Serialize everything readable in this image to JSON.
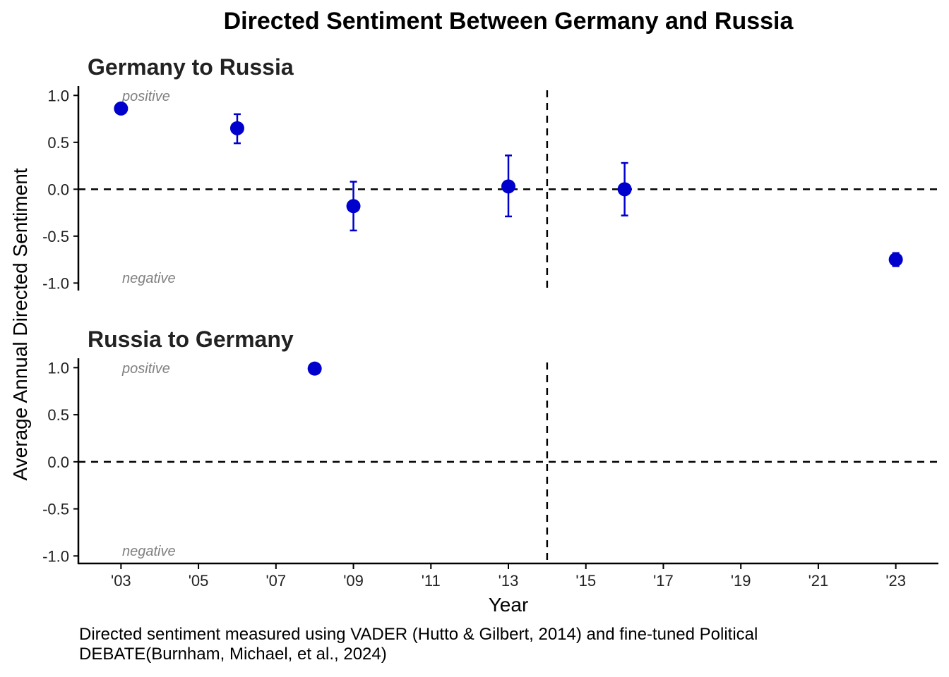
{
  "chart_data": {
    "type": "scatter",
    "title": "Directed Sentiment Between Germany and Russia",
    "xlabel": "Year",
    "ylabel": "Average Annual Directed Sentiment",
    "caption": "Directed sentiment measured using VADER (Hutto & Gilbert, 2014) and fine-tuned Political DEBATE(Burnham, Michael, et al., 2024)",
    "x_ticks": [
      {
        "value": 2003,
        "label": "'03"
      },
      {
        "value": 2005,
        "label": "'05"
      },
      {
        "value": 2007,
        "label": "'07"
      },
      {
        "value": 2009,
        "label": "'09"
      },
      {
        "value": 2011,
        "label": "'11"
      },
      {
        "value": 2013,
        "label": "'13"
      },
      {
        "value": 2015,
        "label": "'15"
      },
      {
        "value": 2017,
        "label": "'17"
      },
      {
        "value": 2019,
        "label": "'19"
      },
      {
        "value": 2021,
        "label": "'21"
      },
      {
        "value": 2023,
        "label": "'23"
      }
    ],
    "y_ticks": [
      {
        "value": 1.0,
        "label": "1.0"
      },
      {
        "value": 0.5,
        "label": "0.5"
      },
      {
        "value": 0.0,
        "label": "0.0"
      },
      {
        "value": -0.5,
        "label": "-0.5"
      },
      {
        "value": -1.0,
        "label": "-1.0"
      }
    ],
    "xlim": [
      2001.9,
      2024.1
    ],
    "ylim": [
      -1.08,
      1.1
    ],
    "reference_lines": {
      "y": 0,
      "x": 2014
    },
    "annotations": {
      "top": "positive",
      "bottom": "negative"
    },
    "point_color": "#0000CD",
    "panels": [
      {
        "title": "Germany to Russia",
        "points": [
          {
            "x": 2003,
            "y": 0.86
          },
          {
            "x": 2006,
            "y": 0.65,
            "ymin": 0.49,
            "ymax": 0.8
          },
          {
            "x": 2009,
            "y": -0.18,
            "ymin": -0.44,
            "ymax": 0.08
          },
          {
            "x": 2013,
            "y": 0.03,
            "ymin": -0.29,
            "ymax": 0.36
          },
          {
            "x": 2016,
            "y": 0.0,
            "ymin": -0.28,
            "ymax": 0.28
          },
          {
            "x": 2023,
            "y": -0.75,
            "ymin": -0.82,
            "ymax": -0.68
          }
        ]
      },
      {
        "title": "Russia to Germany",
        "points": [
          {
            "x": 2008,
            "y": 0.99
          }
        ]
      }
    ]
  }
}
